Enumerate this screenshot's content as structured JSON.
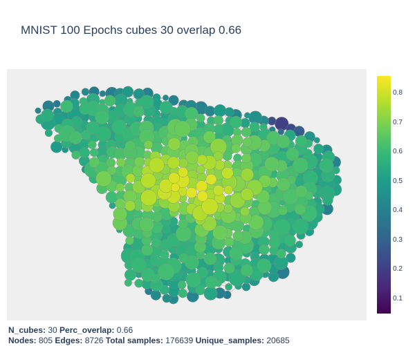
{
  "chart_data": {
    "type": "scatter",
    "title": "MNIST 100 Epochs cubes 30 overlap 0.66",
    "description_kind": "mapper-graph",
    "colorscale": "viridis",
    "color_range": [
      0.05,
      0.86
    ],
    "colorbar_ticks": [
      "0.1",
      "0.2",
      "0.3",
      "0.4",
      "0.5",
      "0.6",
      "0.7",
      "0.8"
    ],
    "colorbar_values": [
      0.1,
      0.2,
      0.3,
      0.4,
      0.5,
      0.6,
      0.7,
      0.8
    ],
    "background_color": "#efefef",
    "edge_color": "#b3b3b3"
  },
  "footer": {
    "l1_k1": "N_cubes:",
    "l1_v1": " 30 ",
    "l1_k2": "Perc_overlap:",
    "l1_v2": " 0.66",
    "l2_k1": "Nodes:",
    "l2_v1": " 805 ",
    "l2_k2": "Edges:",
    "l2_v2": " 8726 ",
    "l2_k3": "Total samples:",
    "l2_v3": " 176639 ",
    "l2_k4": "Unique_samples:",
    "l2_v4": " 20685"
  }
}
